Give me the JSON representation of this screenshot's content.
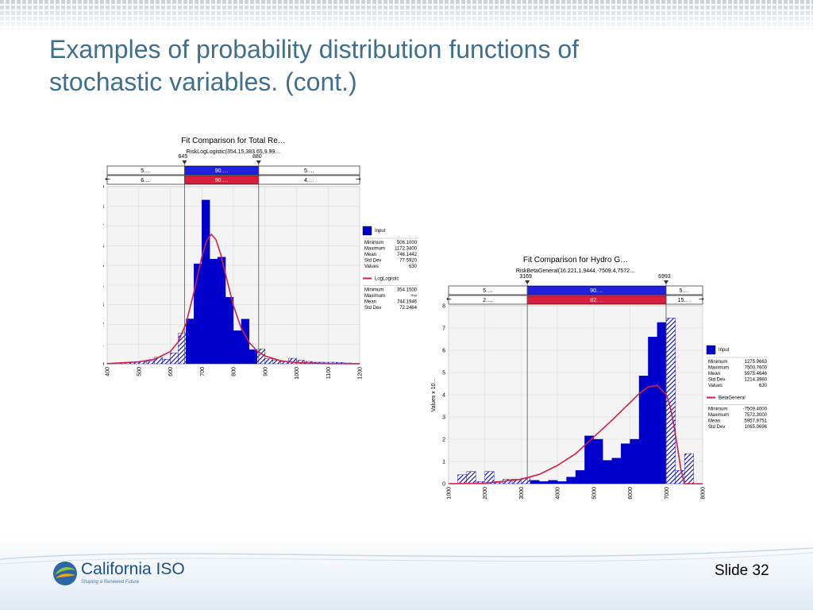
{
  "slide": {
    "title_line1": "Examples of probability distribution functions of",
    "title_line2": "stochastic variables. (cont.)",
    "slide_number": "Slide 32"
  },
  "logo": {
    "name": "California ISO",
    "tagline": "Shaping a Renewed Future"
  },
  "colors": {
    "title": "#3e6f8f",
    "input": "#0000cc",
    "fit": "#d42040",
    "band_input": "#2020dd",
    "band_fit": "#d81e3c"
  },
  "chart_data": [
    {
      "type": "bar",
      "title": "Fit Comparison for Total Re…",
      "subtitle": "RiskLogLogistic(354.15,383.65,9.99…",
      "marker_left": "645",
      "marker_right": "880",
      "band_input": [
        "5.…",
        "90.…",
        "5.…"
      ],
      "band_fit": [
        "6.…",
        "90.…",
        "4.…"
      ],
      "xlim": [
        400,
        1200
      ],
      "ylim": [
        0,
        0.009
      ],
      "xticks": [
        "400",
        "500",
        "600",
        "700",
        "800",
        "900",
        "1000",
        "1100",
        "1200"
      ],
      "yticks": [
        "0.000",
        "0.001",
        "0.002",
        "0.003",
        "0.004",
        "0.005",
        "0.006",
        "0.007",
        "0.008",
        "0.009"
      ],
      "ylabel": "",
      "bin_edges": [
        400,
        425,
        450,
        475,
        500,
        525,
        550,
        575,
        600,
        625,
        650,
        675,
        700,
        725,
        750,
        775,
        800,
        825,
        850,
        875,
        900,
        925,
        950,
        975,
        1000,
        1025,
        1050,
        1075,
        1100,
        1125,
        1150,
        1175,
        1200
      ],
      "input_density": [
        3e-05,
        3e-05,
        5e-05,
        7e-05,
        0.00011,
        0.00013,
        0.00033,
        0.00023,
        0.00055,
        0.00155,
        0.00228,
        0.00508,
        0.00832,
        0.00532,
        0.00542,
        0.00338,
        0.00168,
        0.00227,
        0.00072,
        0.00075,
        0.00025,
        0.00018,
        0.00012,
        0.00028,
        0.00018,
        0.00012,
        8e-05,
        8e-05,
        8e-05,
        7e-05,
        4e-05,
        2e-05
      ],
      "fit_x": [
        400,
        500,
        550,
        600,
        625,
        650,
        675,
        700,
        715,
        730,
        745,
        760,
        775,
        800,
        825,
        850,
        875,
        900,
        950,
        1000,
        1100,
        1200
      ],
      "fit_y": [
        1e-05,
        0.0001,
        0.00023,
        0.00062,
        0.00111,
        0.00205,
        0.00365,
        0.00545,
        0.00625,
        0.00658,
        0.0063,
        0.00555,
        0.00455,
        0.00295,
        0.0018,
        0.00108,
        0.00065,
        0.0004,
        0.00015,
        6e-05,
        1e-05,
        0.0
      ],
      "legend": {
        "input_label": "Input",
        "input_stats": [
          [
            "Minimum",
            "506.1000"
          ],
          [
            "Maximum",
            "1172.3400"
          ],
          [
            "Mean",
            "746.1442"
          ],
          [
            "Std Dev",
            "77.5920"
          ],
          [
            "Values",
            "630"
          ]
        ],
        "fit_label": "LogLogistic",
        "fit_stats": [
          [
            "Minimum",
            "354.1500"
          ],
          [
            "Maximum",
            "+∞"
          ],
          [
            "Mean",
            "744.1946"
          ],
          [
            "Std Dev",
            "72.2464"
          ]
        ]
      }
    },
    {
      "type": "bar",
      "title": "Fit Comparison for Hydro G…",
      "subtitle": "RiskBetaGeneral(16.221,1.9444,-7509.4,7572…",
      "marker_left": "3169",
      "marker_right": "6993",
      "band_input": [
        "5.…",
        "90.…",
        "5.…"
      ],
      "band_fit": [
        "2.…",
        "82.…",
        "15.…"
      ],
      "xlim": [
        1000,
        8000
      ],
      "ylim": [
        0,
        8
      ],
      "xticks": [
        "1000",
        "2000",
        "3000",
        "4000",
        "5000",
        "6000",
        "7000",
        "8000"
      ],
      "yticks": [
        "0",
        "1",
        "2",
        "3",
        "4",
        "5",
        "6",
        "7",
        "8"
      ],
      "ylabel": "Values x 10…",
      "bin_edges": [
        1000,
        1250,
        1500,
        1750,
        2000,
        2250,
        2500,
        2750,
        3000,
        3250,
        3500,
        3750,
        4000,
        4250,
        4500,
        4750,
        5000,
        5250,
        5500,
        5750,
        6000,
        6250,
        6500,
        6750,
        7000,
        7250,
        7500,
        7750,
        8000
      ],
      "input_density": [
        0.0,
        0.4,
        0.55,
        0.1,
        0.55,
        0.05,
        0.2,
        0.2,
        0.25,
        0.15,
        0.1,
        0.15,
        0.1,
        0.3,
        0.6,
        2.15,
        2.0,
        1.05,
        1.15,
        1.8,
        2.0,
        4.85,
        6.6,
        7.25,
        7.45,
        0.6,
        1.35,
        0.0
      ],
      "fit_x": [
        1000,
        2000,
        3000,
        3500,
        4000,
        4500,
        5000,
        5500,
        6000,
        6250,
        6500,
        6750,
        7000,
        7100,
        7200,
        7300,
        7400,
        7500,
        8000
      ],
      "fit_y": [
        0.0,
        0.02,
        0.2,
        0.42,
        0.82,
        1.35,
        2.1,
        2.85,
        3.65,
        4.05,
        4.35,
        4.42,
        4.0,
        3.5,
        2.7,
        1.7,
        0.65,
        0.0,
        0.0
      ],
      "legend": {
        "input_label": "Input",
        "input_stats": [
          [
            "Minimum",
            "1275.9663"
          ],
          [
            "Maximum",
            "7500.7600"
          ],
          [
            "Mean",
            "5975.4646"
          ],
          [
            "Std Dev",
            "1214.3980"
          ],
          [
            "Values",
            "630"
          ]
        ],
        "fit_label": "BetaGeneral",
        "fit_stats": [
          [
            "Minimum",
            "-7509.4000"
          ],
          [
            "Maximum",
            "7572.3000"
          ],
          [
            "Mean",
            "5957.9751"
          ],
          [
            "Std Dev",
            "1065.0696"
          ]
        ]
      }
    }
  ]
}
